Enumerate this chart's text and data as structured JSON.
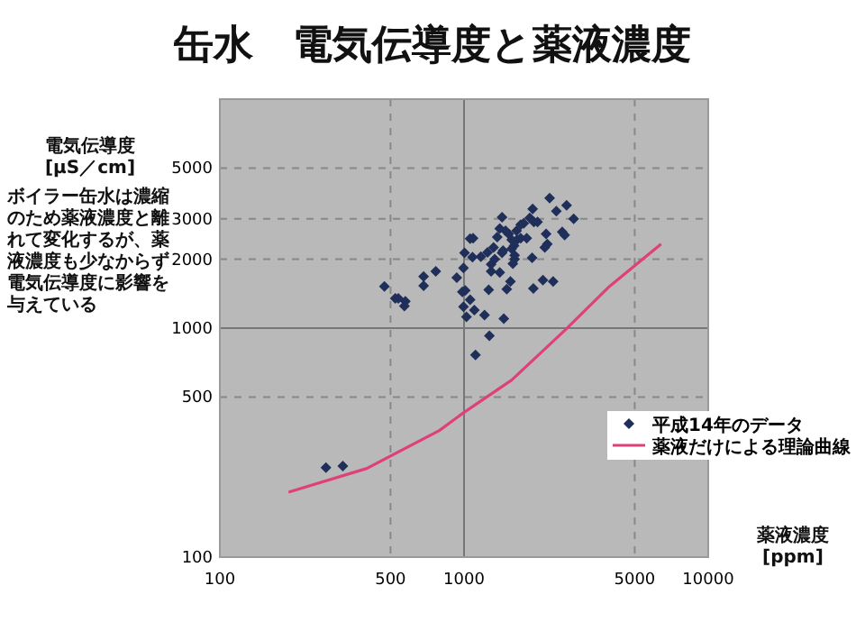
{
  "chart_data": {
    "type": "scatter",
    "title": "缶水　電気伝導度と薬液濃度",
    "xlabel": "薬液濃度\n[ppm]",
    "ylabel": "電気伝導度\n[μS／cm]",
    "annotations": [
      "ボイラー缶水は濃縮のため薬液濃度と離れて変化するが、薬液濃度も少なからず電気伝導度に影響を与えている"
    ],
    "log": "xy",
    "xlim": [
      100,
      10000
    ],
    "ylim": [
      100,
      10000
    ],
    "xticks": [
      100,
      500,
      1000,
      5000,
      10000
    ],
    "yticks": [
      100,
      500,
      1000,
      2000,
      3000,
      5000
    ],
    "grid": true,
    "legend": "bottom right",
    "series": [
      {
        "name": "平成14年のデータ",
        "marker": "diamond",
        "color": "#1f2f5a",
        "x": [
          272,
          319,
          472,
          523,
          538,
          575,
          570,
          683,
          683,
          766,
          934,
          995,
          1005,
          1011,
          984,
          1059,
          995,
          1023,
          1102,
          1213,
          1270,
          1114,
          1455,
          1262,
          1083,
          1089,
          1059,
          1172,
          1248,
          1291,
          1291,
          1336,
          1321,
          1431,
          1400,
          1479,
          1524,
          1567,
          1641,
          1603,
          1431,
          1611,
          1585,
          1549,
          1496,
          1648,
          1706,
          1806,
          1756,
          1858,
          1910,
          1933,
          1900,
          1923,
          2104,
          2317,
          2168,
          2193,
          2142,
          2242,
          2388,
          2630,
          2583,
          2812,
          2524,
          2000,
          1706,
          1567,
          1445,
          1611,
          1400,
          1368
        ],
        "values": [
          246,
          250,
          1520,
          1350,
          1350,
          1310,
          1250,
          1680,
          1530,
          1770,
          1660,
          1830,
          2130,
          1460,
          1440,
          1330,
          1240,
          1120,
          1200,
          1140,
          925,
          764,
          1100,
          1470,
          2040,
          2470,
          2460,
          2050,
          2140,
          1900,
          1770,
          2000,
          2250,
          3050,
          2720,
          2660,
          2580,
          2430,
          2660,
          2290,
          2130,
          2000,
          1910,
          1600,
          1480,
          2430,
          2470,
          2470,
          2870,
          3030,
          3320,
          2910,
          2030,
          1490,
          1620,
          1600,
          2580,
          2330,
          2250,
          3700,
          3240,
          3440,
          2550,
          3000,
          2630,
          2910,
          2830,
          2220,
          2180,
          2080,
          1750,
          2500
        ]
      },
      {
        "name": "薬液だけによる理論曲線",
        "type": "line",
        "marker": "none",
        "line_style": "solid",
        "color": "#e0407a",
        "x": [
          191,
          400,
          792,
          995,
          1567,
          2612,
          3890,
          6410
        ],
        "values": [
          192,
          244,
          357,
          427,
          593,
          988,
          1503,
          2330
        ]
      }
    ]
  }
}
